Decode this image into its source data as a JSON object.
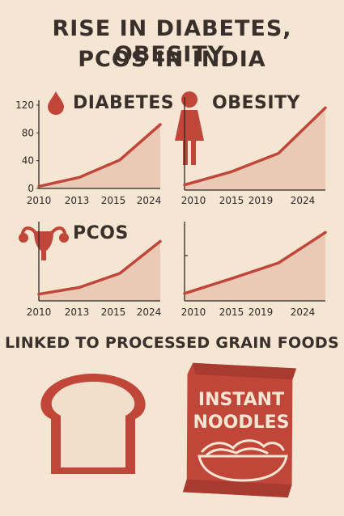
{
  "title_line1": "RISE IN DIABETES, OBESITY,",
  "title_line2": "PCOS IN INDIA",
  "subtitle": "LINKED TO PROCESSED GRAIN FOODS",
  "noodle_pack_line1": "INSTANT",
  "noodle_pack_line2": "NOODLES",
  "colors": {
    "background": "#f4e6d3",
    "accent": "#c0463a",
    "fill": "#eac9b5",
    "text": "#3a302b"
  },
  "icons": [
    "drop-icon",
    "woman-icon",
    "uterus-icon",
    "bread-icon",
    "noodle-pack-icon"
  ],
  "chart_data": [
    {
      "type": "area",
      "label": "DIABETES",
      "x": [
        "2010",
        "2013",
        "2015",
        "2024"
      ],
      "values": [
        3,
        16,
        41,
        92
      ],
      "y_ticks": [
        "120",
        "80",
        "40",
        "0"
      ],
      "ylim": [
        0,
        120
      ]
    },
    {
      "type": "area",
      "label": "OBESITY",
      "x": [
        "2010",
        "2015",
        "2019",
        "2024"
      ],
      "values": [
        7,
        25,
        50,
        112
      ],
      "ylim": [
        0,
        120
      ]
    },
    {
      "type": "area",
      "label": "PCOS",
      "x": [
        "2010",
        "2013",
        "2015",
        "2024"
      ],
      "values": [
        9,
        18,
        37,
        80
      ],
      "ylim": [
        0,
        100
      ]
    },
    {
      "type": "area",
      "label": "",
      "x": [
        "2010",
        "2015",
        "2019",
        "2024"
      ],
      "values": [
        10,
        30,
        51,
        92
      ],
      "ylim": [
        0,
        100
      ]
    }
  ]
}
